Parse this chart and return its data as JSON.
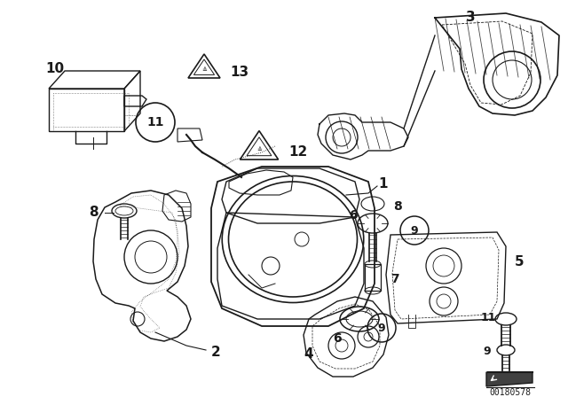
{
  "bg_color": "#ffffff",
  "line_color": "#1a1a1a",
  "diagram_id": "00180578",
  "fig_width": 6.4,
  "fig_height": 4.48,
  "dpi": 100,
  "label_fontsize": 10,
  "parts_label_fontsize": 9
}
